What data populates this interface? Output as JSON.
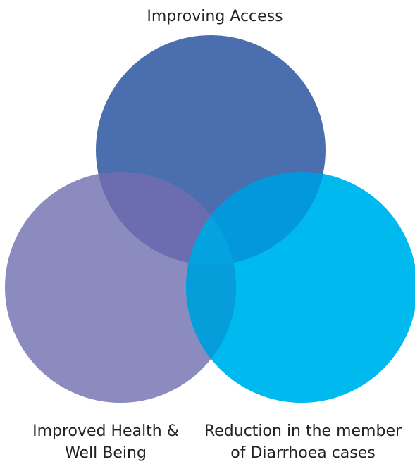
{
  "diagram": {
    "type": "venn",
    "sets": [
      {
        "lines": [
          "Improving Access"
        ],
        "color": "#4a6eae"
      },
      {
        "lines": [
          "Improved Health &",
          "Well Being"
        ],
        "color": "#8b8bc0"
      },
      {
        "lines": [
          "Reduction in the member",
          "of Diarrhoea cases"
        ],
        "color": "#00b9ee"
      }
    ],
    "overlap_colors": {
      "top_left": "#6b6db0",
      "top_right": "#0398db",
      "left_right": "#059dda",
      "center": "#04a2de"
    }
  }
}
